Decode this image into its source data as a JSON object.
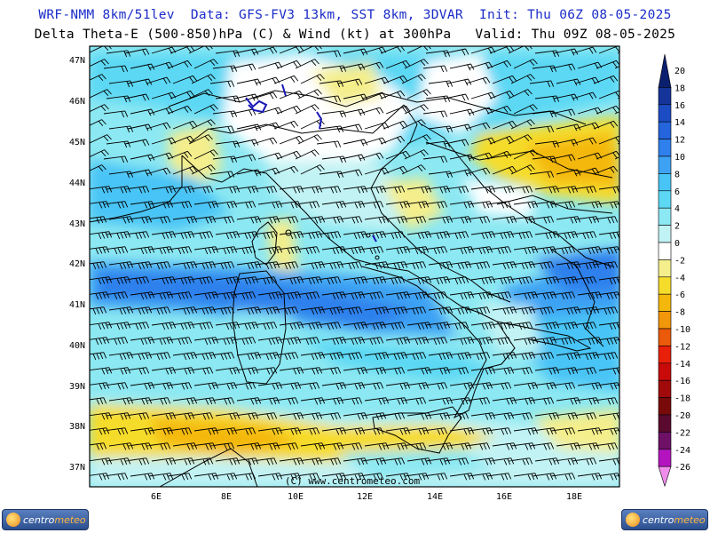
{
  "header": {
    "title_line1": "WRF-NMM 8km/51lev  Data: GFS-FV3 13km, SST 8km, 3DVAR  Init: Thu 06Z 08-05-2025",
    "title_line2": "Delta Theta-E (500-850)hPa (C) & Wind (kt) at 300hPa   Valid: Thu 09Z 08-05-2025"
  },
  "map": {
    "lat_labels": [
      "47N",
      "46N",
      "45N",
      "44N",
      "43N",
      "42N",
      "41N",
      "40N",
      "39N",
      "38N",
      "37N"
    ],
    "lon_labels": [
      "6E",
      "8E",
      "10E",
      "12E",
      "14E",
      "16E",
      "18E"
    ],
    "credit": "(C) www.centrometeo.com"
  },
  "colorbar": {
    "labels": [
      "20",
      "18",
      "16",
      "14",
      "12",
      "10",
      "8",
      "6",
      "4",
      "2",
      "0",
      "-2",
      "-4",
      "-6",
      "-8",
      "-10",
      "-12",
      "-14",
      "-16",
      "-18",
      "-20",
      "-22",
      "-24",
      "-26"
    ],
    "colors": [
      "#0a1f6e",
      "#14349a",
      "#1c4cc4",
      "#2464dc",
      "#2f80ec",
      "#3ea2f4",
      "#48c4f6",
      "#5cd8f4",
      "#8ce8f2",
      "#c2f3f4",
      "#ffffff",
      "#f4ee8c",
      "#f6dc2a",
      "#f4b80c",
      "#f2960a",
      "#ea5a0a",
      "#e8200a",
      "#c80a0a",
      "#a00a0a",
      "#780a0a",
      "#5a0a2e",
      "#6e1066",
      "#b414c0",
      "#f08cec"
    ]
  },
  "logos": {
    "left": "centrometeo",
    "right": "centrometeo"
  }
}
